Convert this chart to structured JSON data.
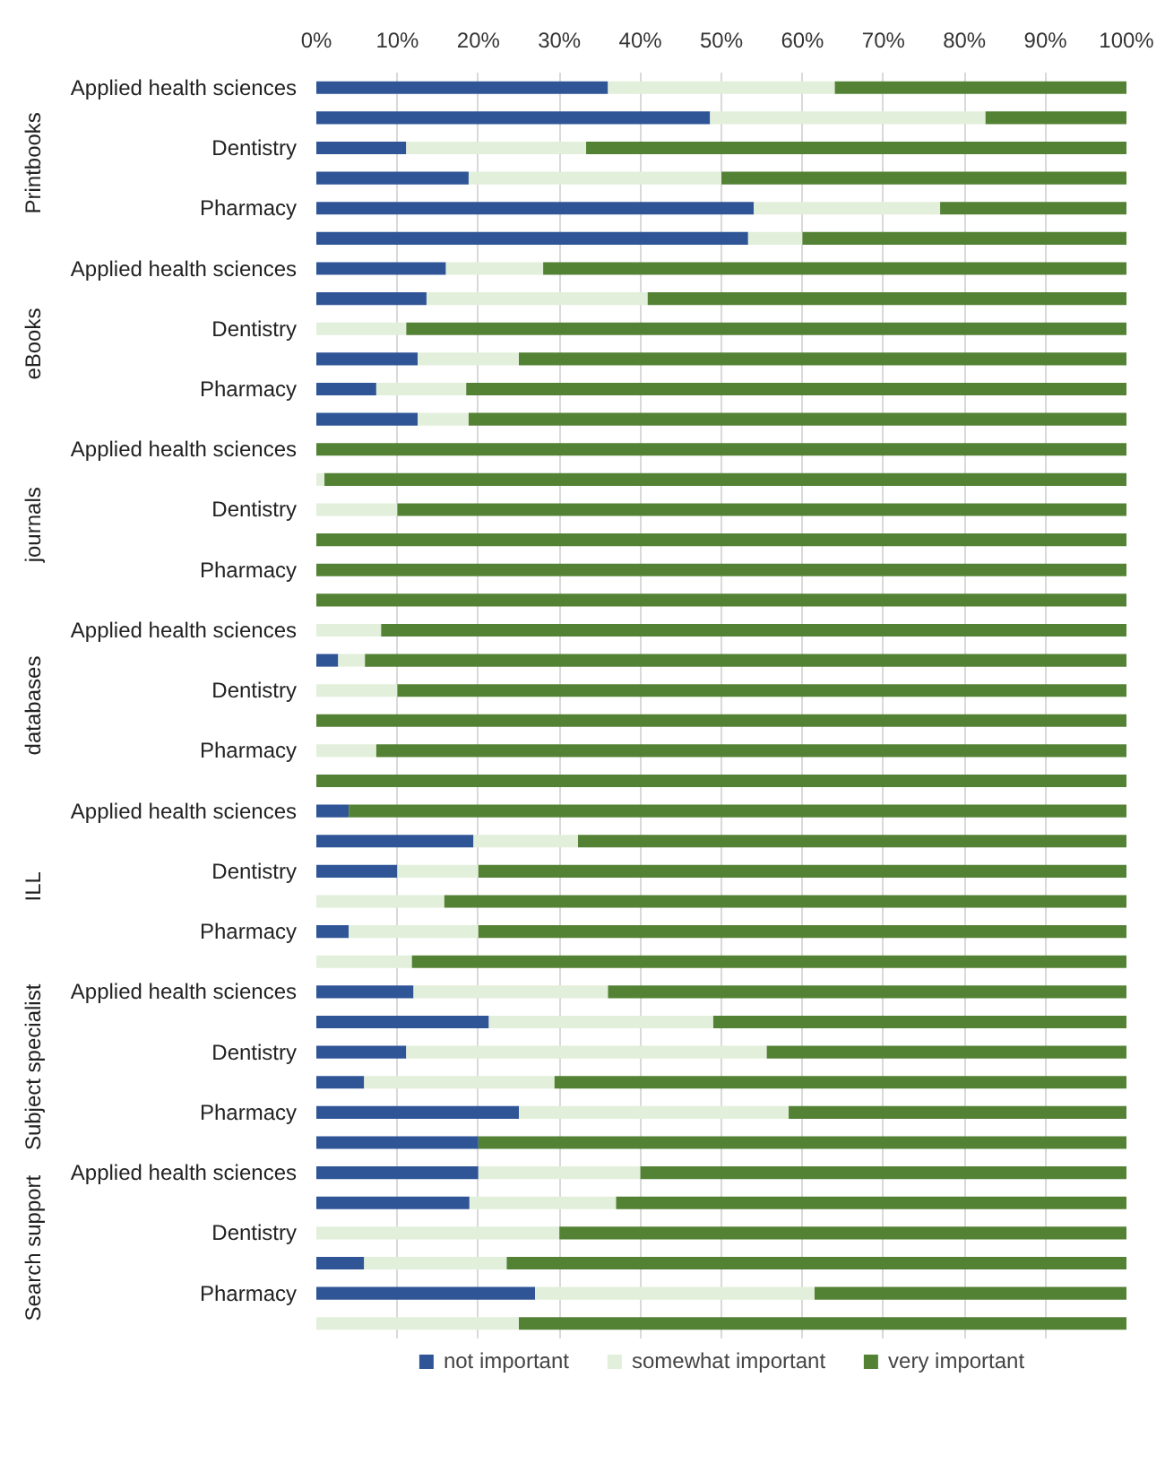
{
  "chart_data": {
    "type": "bar",
    "orientation": "horizontal",
    "stacked": true,
    "categories": [
      "Applied health sciences",
      null,
      "Dentistry",
      null,
      "Pharmacy",
      null,
      "Applied health sciences",
      null,
      "Dentistry",
      null,
      "Pharmacy",
      null,
      "Applied health sciences",
      null,
      "Dentistry",
      null,
      "Pharmacy",
      null,
      "Applied health sciences",
      null,
      "Dentistry",
      null,
      "Pharmacy",
      null,
      "Applied health sciences",
      null,
      "Dentistry",
      null,
      "Pharmacy",
      null,
      "Applied health sciences",
      null,
      "Dentistry",
      null,
      "Pharmacy",
      null,
      "Applied health sciences",
      null,
      "Dentistry",
      null,
      "Pharmacy",
      null
    ],
    "series": [
      {
        "name": "not important",
        "color": "#2f5597",
        "values": [
          36,
          48.6,
          11.1,
          18.8,
          54,
          53.3,
          16,
          13.6,
          0,
          12.5,
          7.4,
          12.5,
          0,
          0,
          0,
          0,
          0,
          0,
          0,
          2.7,
          0,
          0,
          0,
          0,
          4,
          19.4,
          10,
          0,
          4,
          0,
          12,
          21.3,
          11.1,
          5.9,
          25,
          20,
          20,
          18.9,
          0,
          5.9,
          27,
          0
        ]
      },
      {
        "name": "somewhat important",
        "color": "#e2efda",
        "values": [
          28,
          34,
          22.2,
          31.2,
          23,
          6.7,
          12,
          27.3,
          11.1,
          12.5,
          11.1,
          6.3,
          0,
          1,
          10,
          0,
          0,
          0,
          8,
          3.3,
          10,
          0,
          7.4,
          0,
          0,
          12.9,
          10,
          15.8,
          16,
          11.8,
          24,
          27.7,
          44.5,
          23.5,
          33.3,
          0,
          20,
          18.1,
          30,
          17.6,
          34.5,
          25
        ]
      },
      {
        "name": "very important",
        "color": "#548235",
        "values": [
          36,
          17.4,
          66.7,
          50,
          23,
          40,
          72,
          59.1,
          88.9,
          75,
          81.5,
          81.2,
          100,
          99,
          90,
          100,
          100,
          100,
          92,
          94,
          90,
          100,
          92.6,
          100,
          96,
          67.7,
          80,
          84.2,
          80,
          88.2,
          64,
          51,
          44.4,
          70.6,
          41.7,
          80,
          60,
          63,
          70,
          76.5,
          38.5,
          75
        ]
      }
    ],
    "xlim": [
      0,
      100
    ],
    "xticks": [
      {
        "value": 0,
        "label": "0%"
      },
      {
        "value": 10,
        "label": "10%"
      },
      {
        "value": 20,
        "label": "20%"
      },
      {
        "value": 30,
        "label": "30%"
      },
      {
        "value": 40,
        "label": "40%"
      },
      {
        "value": 50,
        "label": "50%"
      },
      {
        "value": 60,
        "label": "60%"
      },
      {
        "value": 70,
        "label": "70%"
      },
      {
        "value": 80,
        "label": "80%"
      },
      {
        "value": 90,
        "label": "90%"
      },
      {
        "value": 100,
        "label": "100%"
      }
    ],
    "grid": "x",
    "legend": "bottom",
    "annotations": [
      "Printbooks",
      "eBooks",
      "journals",
      "databases",
      "ILL",
      "Subject specialist",
      "Search support"
    ]
  }
}
